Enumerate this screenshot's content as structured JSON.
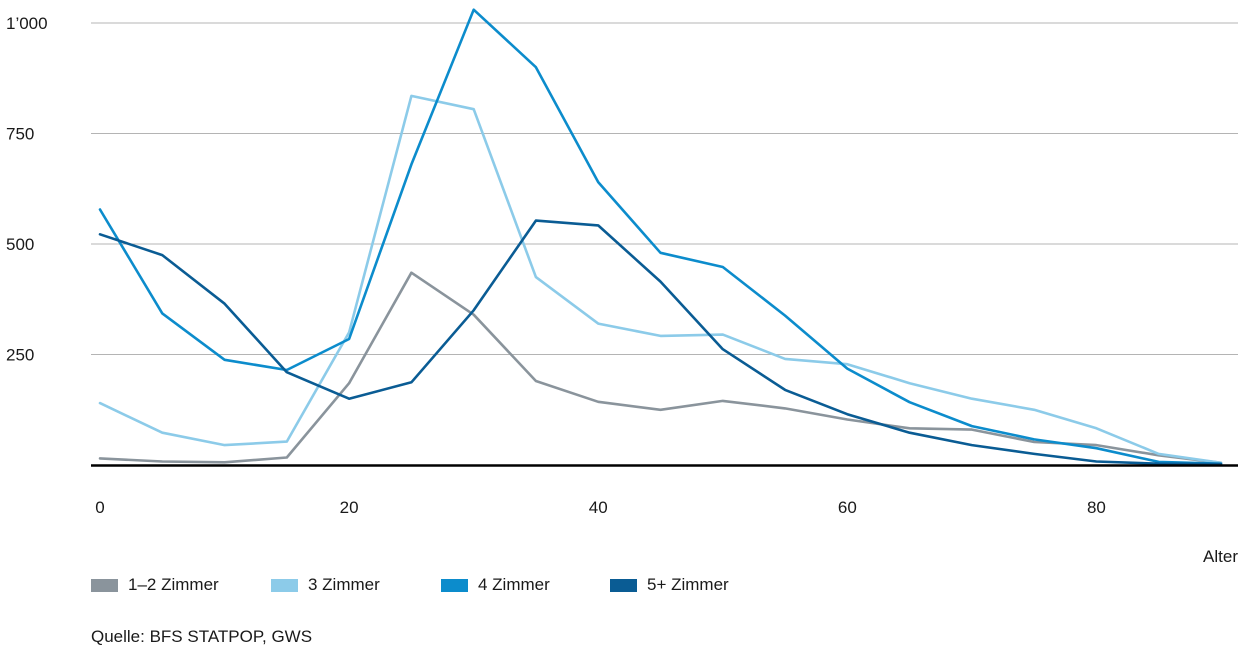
{
  "chart_data": {
    "type": "line",
    "title": "",
    "xlabel": "Alter",
    "ylabel": "",
    "xlim": [
      0,
      90
    ],
    "ylim": [
      0,
      1000
    ],
    "x_ticks": [
      0,
      20,
      40,
      60,
      80
    ],
    "y_ticks": [
      250,
      500,
      750,
      1000
    ],
    "y_tick_labels": [
      "250",
      "500",
      "750",
      "1’000"
    ],
    "grid": "horizontal",
    "legend_position": "bottom-left",
    "x": [
      0,
      5,
      10,
      15,
      20,
      25,
      30,
      35,
      40,
      45,
      50,
      55,
      60,
      65,
      70,
      75,
      80,
      85,
      90
    ],
    "series": [
      {
        "name": "1–2 Zimmer",
        "color": "#8a949c",
        "values": [
          15,
          8,
          6,
          17,
          185,
          435,
          340,
          190,
          143,
          125,
          145,
          128,
          103,
          83,
          80,
          52,
          45,
          22,
          5
        ]
      },
      {
        "name": "3 Zimmer",
        "color": "#8ccbe9",
        "values": [
          140,
          73,
          45,
          53,
          300,
          835,
          805,
          425,
          320,
          292,
          295,
          240,
          228,
          185,
          150,
          125,
          83,
          25,
          5
        ]
      },
      {
        "name": "4 Zimmer",
        "color": "#0c8ccc",
        "values": [
          578,
          343,
          238,
          215,
          285,
          680,
          1030,
          900,
          640,
          480,
          448,
          338,
          218,
          142,
          88,
          58,
          38,
          7,
          3
        ]
      },
      {
        "name": "5+ Zimmer",
        "color": "#0a5c94",
        "values": [
          522,
          475,
          365,
          210,
          150,
          187,
          350,
          553,
          542,
          415,
          262,
          170,
          115,
          73,
          45,
          25,
          8,
          3,
          2
        ]
      }
    ]
  },
  "source": "Quelle: BFS STATPOP, GWS"
}
